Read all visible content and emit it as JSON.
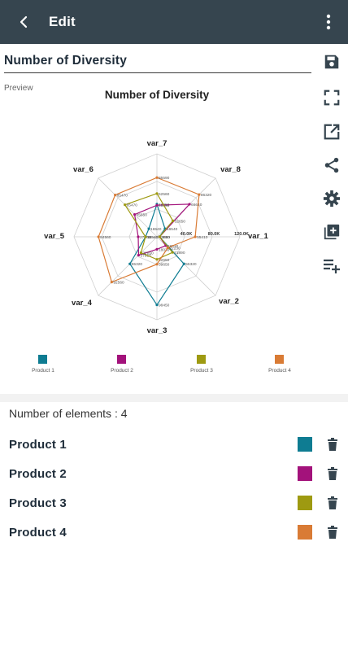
{
  "appbar": {
    "title": "Edit",
    "back_icon": "arrow-back-icon",
    "menu_icon": "more-vertical-icon"
  },
  "chart_title_value": "Number of Diversity",
  "preview_label": "Preview",
  "toolbar": [
    {
      "icon": "save-icon"
    },
    {
      "icon": "fullscreen-icon"
    },
    {
      "icon": "open-external-icon"
    },
    {
      "icon": "share-icon"
    },
    {
      "icon": "settings-gear-icon"
    },
    {
      "icon": "add-copy-icon"
    },
    {
      "icon": "playlist-add-icon"
    }
  ],
  "chart_data": {
    "type": "radar",
    "title": "Number of Diversity",
    "axes": [
      "var_1",
      "var_2",
      "var_3",
      "var_4",
      "var_5",
      "var_6",
      "var_7",
      "var_8"
    ],
    "rmax": 120000,
    "ring_labels": [
      "40.0K",
      "80.0K",
      "120.0K"
    ],
    "series": [
      {
        "name": "Product 1",
        "color": "#0e7c92",
        "values": [
          3880,
          55320,
          98450,
          55320,
          16540,
          16540,
          47250,
          16540
        ]
      },
      {
        "name": "Product 2",
        "color": "#a3127b",
        "values": [
          3880,
          18030,
          18030,
          37510,
          27060,
          45650,
          45650,
          66640
        ]
      },
      {
        "name": "Product 3",
        "color": "#9e9a11",
        "values": [
          3880,
          31890,
          32650,
          32650,
          16540,
          65470,
          62560,
          32650
        ]
      },
      {
        "name": "Product 4",
        "color": "#d97b35",
        "values": [
          55410,
          22230,
          39650,
          92560,
          84560,
          85470,
          85590,
          86320
        ]
      }
    ],
    "value_labels": [
      [
        "3880",
        "55320",
        "98450",
        "55320",
        "16540",
        "16540",
        "47250",
        "16540"
      ],
      [
        "3880",
        "18030",
        "18030",
        "37510",
        "27060",
        "45650",
        "45650",
        "66640"
      ],
      [
        "3880",
        "31890",
        "32650",
        "32650",
        "16540",
        "65470",
        "62560",
        "32650"
      ],
      [
        "55410",
        "22230",
        "39650",
        "92560",
        "84560",
        "85470",
        "85590",
        "86320"
      ]
    ],
    "legend_position": "bottom"
  },
  "elements_count_label": "Number of elements : 4",
  "items": [
    {
      "label": "Product 1",
      "color": "#0e7c92"
    },
    {
      "label": "Product 2",
      "color": "#a3127b"
    },
    {
      "label": "Product 3",
      "color": "#9e9a11"
    },
    {
      "label": "Product 4",
      "color": "#d97b35"
    }
  ],
  "colors": {
    "appbar": "#36454f",
    "icon": "#36454f",
    "text": "#1f2d3a"
  }
}
